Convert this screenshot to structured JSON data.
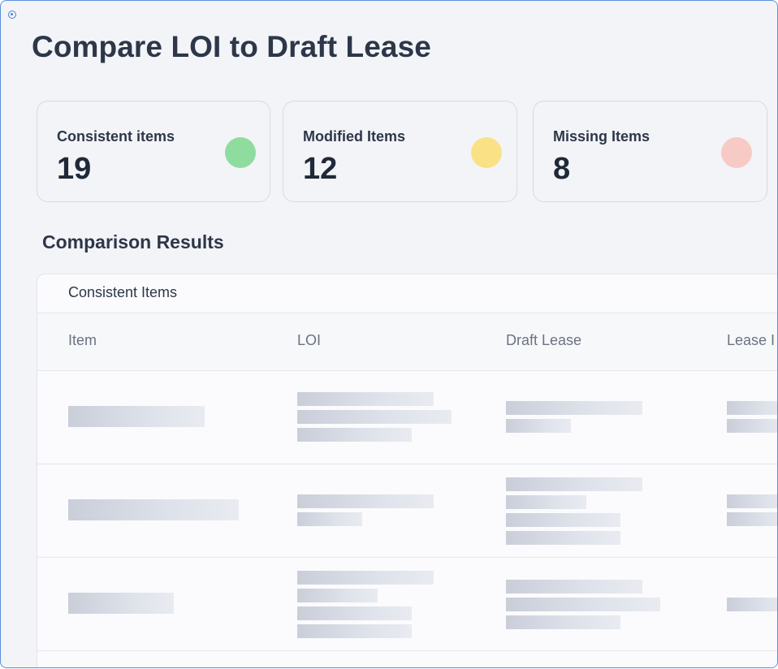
{
  "page": {
    "title": "Compare LOI to Draft Lease"
  },
  "summary": {
    "consistent": {
      "label": "Consistent items",
      "value": "19",
      "color": "#8fdc9f"
    },
    "modified": {
      "label": "Modified Items",
      "value": "12",
      "color": "#fbe186"
    },
    "missing": {
      "label": "Missing Items",
      "value": "8",
      "color": "#f8cac5"
    }
  },
  "results": {
    "title": "Comparison Results",
    "group_label": "Consistent Items",
    "columns": [
      "Item",
      "LOI",
      "Draft Lease",
      "Lease I"
    ]
  }
}
